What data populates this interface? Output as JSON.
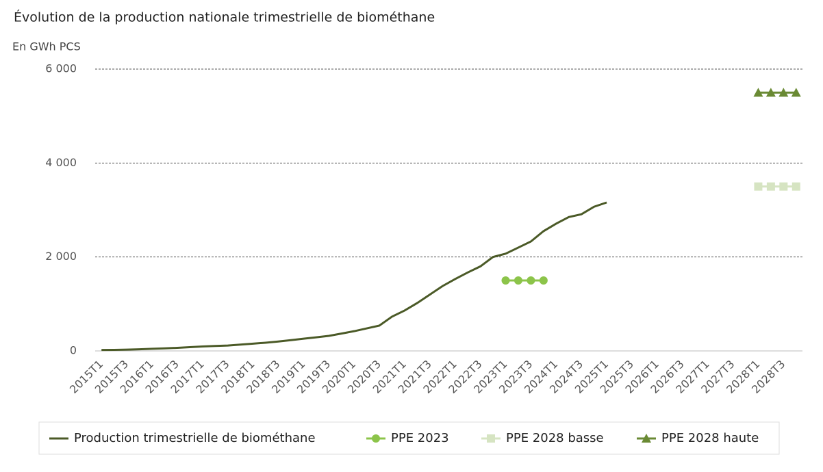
{
  "chart_data": {
    "type": "line",
    "title": "Évolution de la production nationale trimestrielle de biométhane",
    "ylabel": "En GWh PCS",
    "categories": [
      "2015T1",
      null,
      "2015T3",
      null,
      "2016T1",
      null,
      "2016T3",
      null,
      "2017T1",
      null,
      "2017T3",
      null,
      "2018T1",
      null,
      "2018T3",
      null,
      "2019T1",
      null,
      "2019T3",
      null,
      "2020T1",
      null,
      "2020T3",
      null,
      "2021T1",
      null,
      "2021T3",
      null,
      "2022T1",
      null,
      "2022T3",
      null,
      "2023T1",
      null,
      "2023T3",
      null,
      "2024T1",
      null,
      "2024T3",
      null,
      "2025T1",
      null,
      "2025T3",
      null,
      "2026T1",
      null,
      "2026T3",
      null,
      "2027T1",
      null,
      "2027T3",
      null,
      "2028T1",
      null,
      "2028T3",
      null
    ],
    "series": [
      {
        "name": "Production trimestrielle de biométhane",
        "color": "#4b5a27",
        "values": [
          20,
          22,
          28,
          35,
          45,
          55,
          65,
          80,
          95,
          105,
          115,
          135,
          155,
          175,
          200,
          230,
          260,
          290,
          320,
          370,
          420,
          480,
          540,
          730,
          860,
          1020,
          1200,
          1380,
          1530,
          1670,
          1800,
          2000,
          2070,
          2200,
          2330,
          2550,
          2710,
          2850,
          2910,
          3070,
          3160,
          null,
          null,
          null,
          null,
          null,
          null,
          null,
          null,
          null,
          null,
          null,
          null,
          null,
          null,
          null
        ]
      },
      {
        "name": "PPE 2023",
        "color": "#8cc44a",
        "marker": "circle",
        "values": [
          null,
          null,
          null,
          null,
          null,
          null,
          null,
          null,
          null,
          null,
          null,
          null,
          null,
          null,
          null,
          null,
          null,
          null,
          null,
          null,
          null,
          null,
          null,
          null,
          null,
          null,
          null,
          null,
          null,
          null,
          null,
          null,
          1500,
          1500,
          1500,
          1500,
          null,
          null,
          null,
          null,
          null,
          null,
          null,
          null,
          null,
          null,
          null,
          null,
          null,
          null,
          null,
          null,
          null,
          null,
          null,
          null
        ]
      },
      {
        "name": "PPE 2028 basse",
        "color": "#d6e4c2",
        "marker": "square",
        "values": [
          null,
          null,
          null,
          null,
          null,
          null,
          null,
          null,
          null,
          null,
          null,
          null,
          null,
          null,
          null,
          null,
          null,
          null,
          null,
          null,
          null,
          null,
          null,
          null,
          null,
          null,
          null,
          null,
          null,
          null,
          null,
          null,
          null,
          null,
          null,
          null,
          null,
          null,
          null,
          null,
          null,
          null,
          null,
          null,
          null,
          null,
          null,
          null,
          null,
          null,
          null,
          null,
          3500,
          3500,
          3500,
          3500
        ]
      },
      {
        "name": "PPE 2028 haute",
        "color": "#6a8a34",
        "marker": "triangle",
        "values": [
          null,
          null,
          null,
          null,
          null,
          null,
          null,
          null,
          null,
          null,
          null,
          null,
          null,
          null,
          null,
          null,
          null,
          null,
          null,
          null,
          null,
          null,
          null,
          null,
          null,
          null,
          null,
          null,
          null,
          null,
          null,
          null,
          null,
          null,
          null,
          null,
          null,
          null,
          null,
          null,
          null,
          null,
          null,
          null,
          null,
          null,
          null,
          null,
          null,
          null,
          null,
          null,
          5500,
          5500,
          5500,
          5500
        ]
      }
    ],
    "ylim": [
      0,
      6000
    ],
    "yticks": [
      0,
      {
        "value": 2000,
        "label": "2 000"
      },
      {
        "value": 4000,
        "label": "4 000"
      },
      {
        "value": 6000,
        "label": "6 000"
      }
    ],
    "grid": true
  }
}
